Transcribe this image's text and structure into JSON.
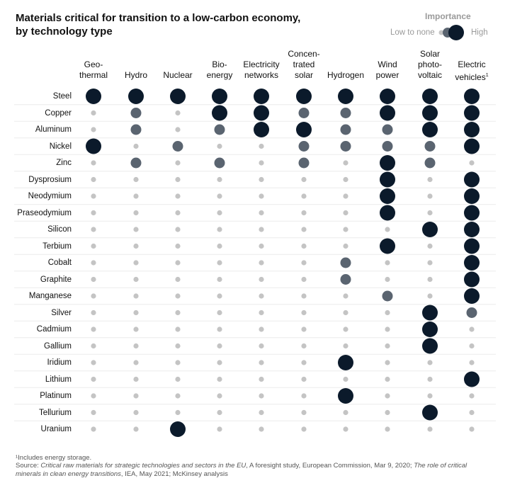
{
  "title": "Materials critical for transition to a low-carbon economy, by technology type",
  "legend": {
    "title": "Importance",
    "low": "Low to none",
    "high": "High"
  },
  "colors": {
    "none": "#c4c4c4",
    "medium": "#5a6470",
    "high": "#0b1a2b"
  },
  "footnote": "¹Includes energy storage.",
  "source": {
    "prefix": "Source: ",
    "s1": "Critical raw materials for strategic technologies and sectors in the EU",
    "s2": ", A foresight study, European Commission, Mar 9, 2020; ",
    "s3": "The role of critical minerals in clean energy transitions",
    "s4": ", IEA, May 2021; McKinsey analysis"
  },
  "chart_data": {
    "type": "heatmap",
    "value_scale": "0 = low to none, 1 = medium, 2 = high",
    "columns": [
      "Geo-\nthermal",
      "Hydro",
      "Nuclear",
      "Bio-\nenergy",
      "Electricity\nnetworks",
      "Concen-\ntrated\nsolar",
      "Hydrogen",
      "Wind\npower",
      "Solar\nphoto-\nvoltaic",
      "Electric\nvehicles"
    ],
    "column_footnote_marker": "1",
    "rows": [
      "Steel",
      "Copper",
      "Aluminum",
      "Nickel",
      "Zinc",
      "Dysprosium",
      "Neodymium",
      "Praseodymium",
      "Silicon",
      "Terbium",
      "Cobalt",
      "Graphite",
      "Manganese",
      "Silver",
      "Cadmium",
      "Gallium",
      "Iridium",
      "Lithium",
      "Platinum",
      "Tellurium",
      "Uranium"
    ],
    "values": [
      [
        2,
        2,
        2,
        2,
        2,
        2,
        2,
        2,
        2,
        2
      ],
      [
        0,
        1,
        0,
        2,
        2,
        1,
        1,
        2,
        2,
        2
      ],
      [
        0,
        1,
        0,
        1,
        2,
        2,
        1,
        1,
        2,
        2
      ],
      [
        2,
        0,
        1,
        0,
        0,
        1,
        1,
        1,
        1,
        2
      ],
      [
        0,
        1,
        0,
        1,
        0,
        1,
        0,
        2,
        1,
        0
      ],
      [
        0,
        0,
        0,
        0,
        0,
        0,
        0,
        2,
        0,
        2
      ],
      [
        0,
        0,
        0,
        0,
        0,
        0,
        0,
        2,
        0,
        2
      ],
      [
        0,
        0,
        0,
        0,
        0,
        0,
        0,
        2,
        0,
        2
      ],
      [
        0,
        0,
        0,
        0,
        0,
        0,
        0,
        0,
        2,
        2
      ],
      [
        0,
        0,
        0,
        0,
        0,
        0,
        0,
        2,
        0,
        2
      ],
      [
        0,
        0,
        0,
        0,
        0,
        0,
        1,
        0,
        0,
        2
      ],
      [
        0,
        0,
        0,
        0,
        0,
        0,
        1,
        0,
        0,
        2
      ],
      [
        0,
        0,
        0,
        0,
        0,
        0,
        0,
        1,
        0,
        2
      ],
      [
        0,
        0,
        0,
        0,
        0,
        0,
        0,
        0,
        2,
        1
      ],
      [
        0,
        0,
        0,
        0,
        0,
        0,
        0,
        0,
        2,
        0
      ],
      [
        0,
        0,
        0,
        0,
        0,
        0,
        0,
        0,
        2,
        0
      ],
      [
        0,
        0,
        0,
        0,
        0,
        0,
        2,
        0,
        0,
        0
      ],
      [
        0,
        0,
        0,
        0,
        0,
        0,
        0,
        0,
        0,
        2
      ],
      [
        0,
        0,
        0,
        0,
        0,
        0,
        2,
        0,
        0,
        0
      ],
      [
        0,
        0,
        0,
        0,
        0,
        0,
        0,
        0,
        2,
        0
      ],
      [
        0,
        0,
        2,
        0,
        0,
        0,
        0,
        0,
        0,
        0
      ]
    ]
  }
}
